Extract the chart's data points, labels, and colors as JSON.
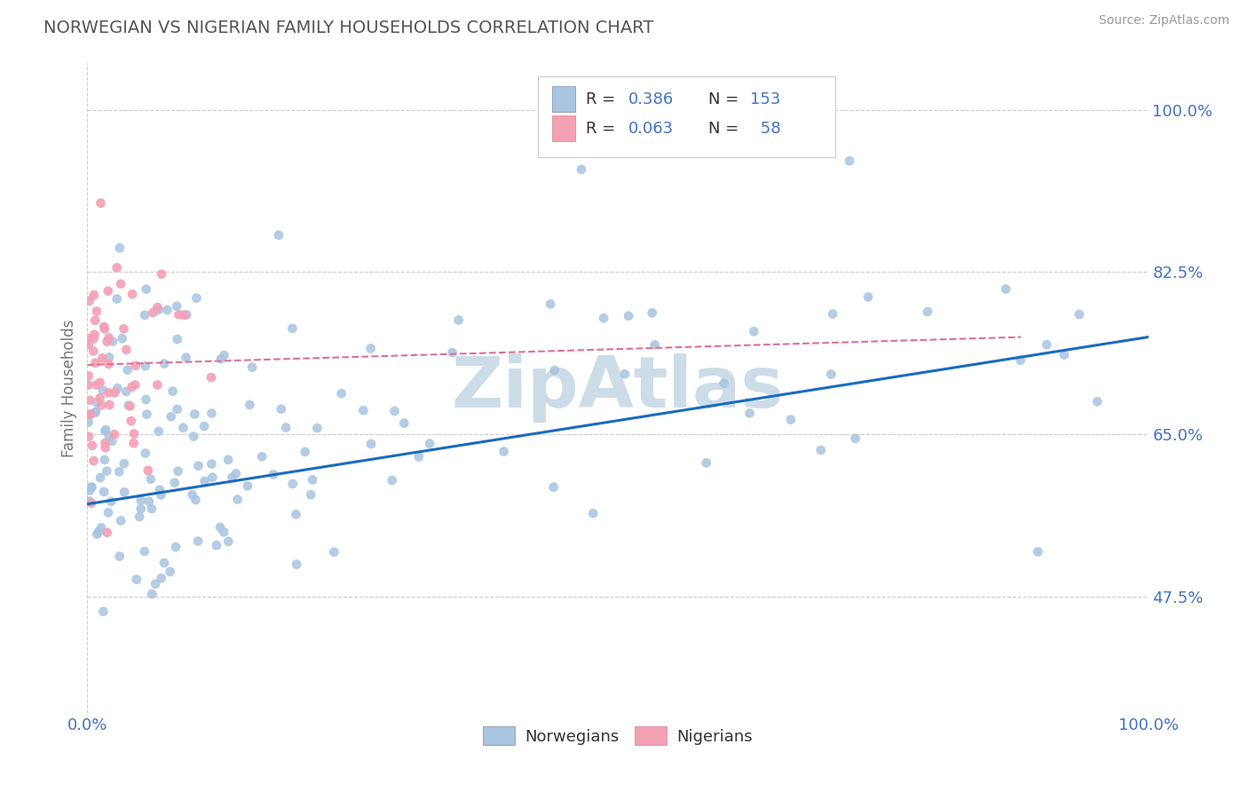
{
  "title": "NORWEGIAN VS NIGERIAN FAMILY HOUSEHOLDS CORRELATION CHART",
  "source_text": "Source: ZipAtlas.com",
  "ylabel": "Family Households",
  "xlim": [
    0.0,
    1.0
  ],
  "ylim": [
    0.35,
    1.05
  ],
  "yticks": [
    0.475,
    0.65,
    0.825,
    1.0
  ],
  "ytick_labels": [
    "47.5%",
    "65.0%",
    "82.5%",
    "100.0%"
  ],
  "xtick_labels": [
    "0.0%",
    "100.0%"
  ],
  "norwegian_color": "#a8c4e0",
  "nigerian_color": "#f4a0b5",
  "norwegian_line_color": "#1a6bbf",
  "nigerian_line_color": "#e07090",
  "watermark": "ZipAtlas",
  "watermark_color": "#ccdde8",
  "background_color": "#ffffff",
  "grid_color": "#cccccc",
  "title_color": "#555555",
  "source_color": "#999999",
  "axis_label_color": "#777777",
  "tick_color": "#4472c4",
  "legend_text_color": "#4472c4",
  "nor_trend_start_y": 0.575,
  "nor_trend_end_y": 0.755,
  "nig_trend_start_x": 0.0,
  "nig_trend_end_x": 0.88,
  "nig_trend_start_y": 0.725,
  "nig_trend_end_y": 0.755
}
